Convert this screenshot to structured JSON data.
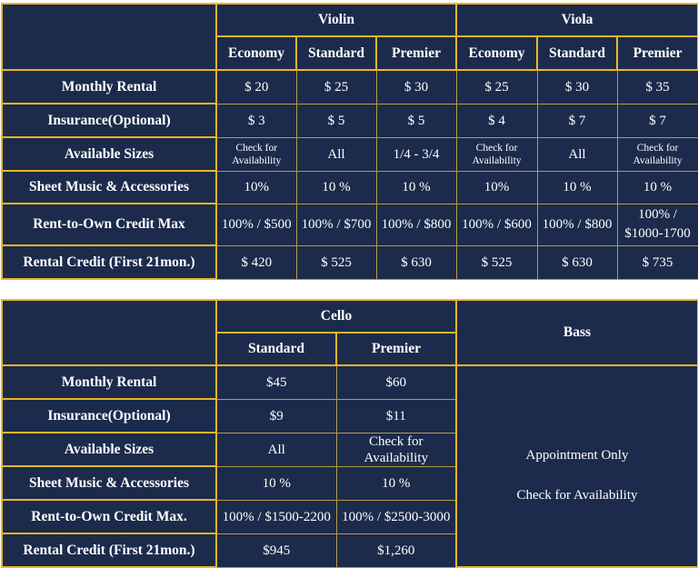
{
  "top_table": {
    "groups": [
      "Violin",
      "Viola"
    ],
    "tiers": [
      "Economy",
      "Standard",
      "Premier",
      "Economy",
      "Standard",
      "Premier"
    ],
    "rows": [
      {
        "label": "Monthly Rental",
        "values": [
          "$ 20",
          "$ 25",
          "$ 30",
          "$ 25",
          "$ 30",
          "$ 35"
        ]
      },
      {
        "label": "Insurance(Optional)",
        "values": [
          "$ 3",
          "$ 5",
          "$ 5",
          "$ 4",
          "$ 7",
          "$ 7"
        ]
      },
      {
        "label": "Available Sizes",
        "values": [
          "Check for Availability",
          "All",
          "1/4 - 3/4",
          "Check for Availability",
          "All",
          "Check for Availability"
        ]
      },
      {
        "label": "Sheet Music & Accessories",
        "values": [
          "10%",
          "10 %",
          "10 %",
          "10%",
          "10 %",
          "10 %"
        ]
      },
      {
        "label": "Rent-to-Own Credit Max",
        "values": [
          "100% / $500",
          "100% / $700",
          "100% / $800",
          "100% / $600",
          "100% / $800",
          "100% / $1000-1700"
        ]
      },
      {
        "label": "Rental Credit (First 21mon.)",
        "values": [
          "$ 420",
          "$ 525",
          "$ 630",
          "$ 525",
          "$ 630",
          "$ 735"
        ]
      }
    ]
  },
  "bottom_table": {
    "group": "Cello",
    "tiers": [
      "Standard",
      "Premier"
    ],
    "bass_title": "Bass",
    "bass_note1": "Appointment Only",
    "bass_note2": "Check for Availability",
    "rows": [
      {
        "label": "Monthly Rental",
        "values": [
          "$45",
          "$60"
        ]
      },
      {
        "label": "Insurance(Optional)",
        "values": [
          "$9",
          "$11"
        ]
      },
      {
        "label": "Available Sizes",
        "values": [
          "All",
          "Check for Availability"
        ]
      },
      {
        "label": "Sheet Music & Accessories",
        "values": [
          "10 %",
          "10 %"
        ]
      },
      {
        "label": "Rent-to-Own Credit Max.",
        "values": [
          "100% / $1500-2200",
          "100% / $2500-3000"
        ]
      },
      {
        "label": "Rental Credit (First 21mon.)",
        "values": [
          "$945",
          "$1,260"
        ]
      }
    ]
  }
}
